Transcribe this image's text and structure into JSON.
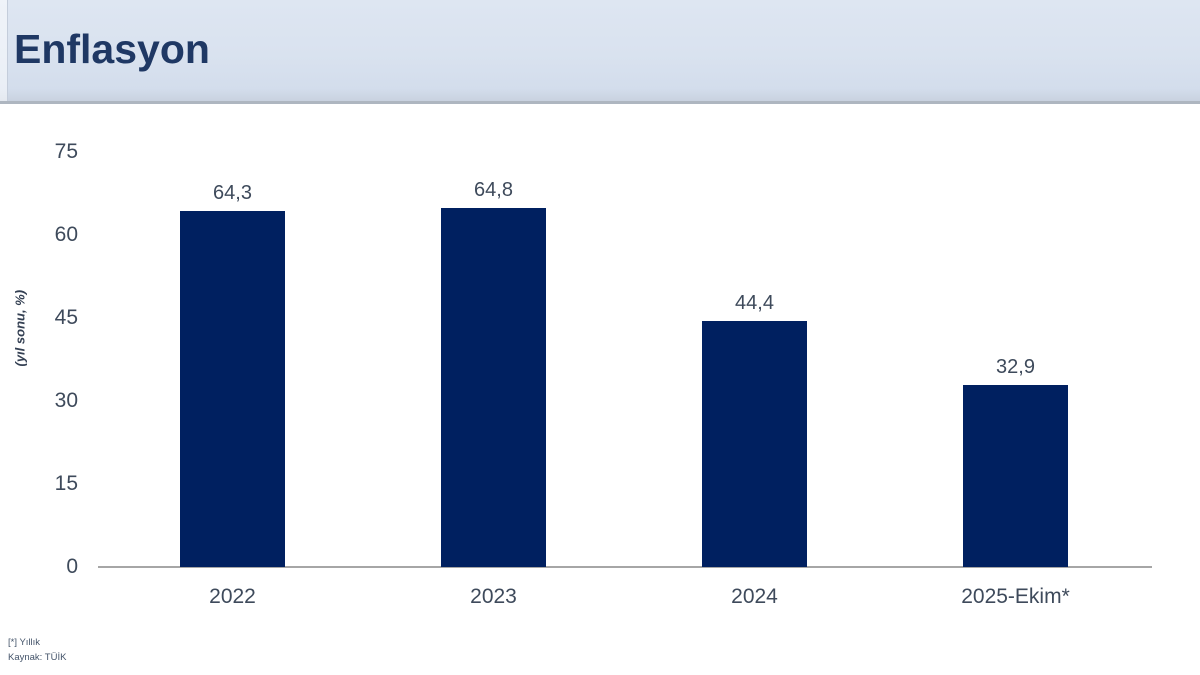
{
  "header": {
    "title": "Enflasyon"
  },
  "chart_data": {
    "type": "bar",
    "title": "Enflasyon",
    "categories": [
      "2022",
      "2023",
      "2024",
      "2025-Ekim*"
    ],
    "values": [
      64.3,
      64.8,
      44.4,
      32.9
    ],
    "value_labels": [
      "64,3",
      "64,8",
      "44,4",
      "32,9"
    ],
    "xlabel": "",
    "ylabel": "(yıl sonu, %)",
    "ylim": [
      0,
      75
    ],
    "yticks": [
      0,
      15,
      30,
      45,
      60,
      75
    ],
    "grid": false,
    "legend": "none"
  },
  "footnotes": [
    "[*] Yıllık",
    "Kaynak: TÜİK"
  ],
  "colors": {
    "bar": "#002060",
    "title": "#1f3864",
    "axis_line": "#a6a6a6",
    "tick_text": "#3e4a5b",
    "banner_bg": "#d9e2ef"
  }
}
